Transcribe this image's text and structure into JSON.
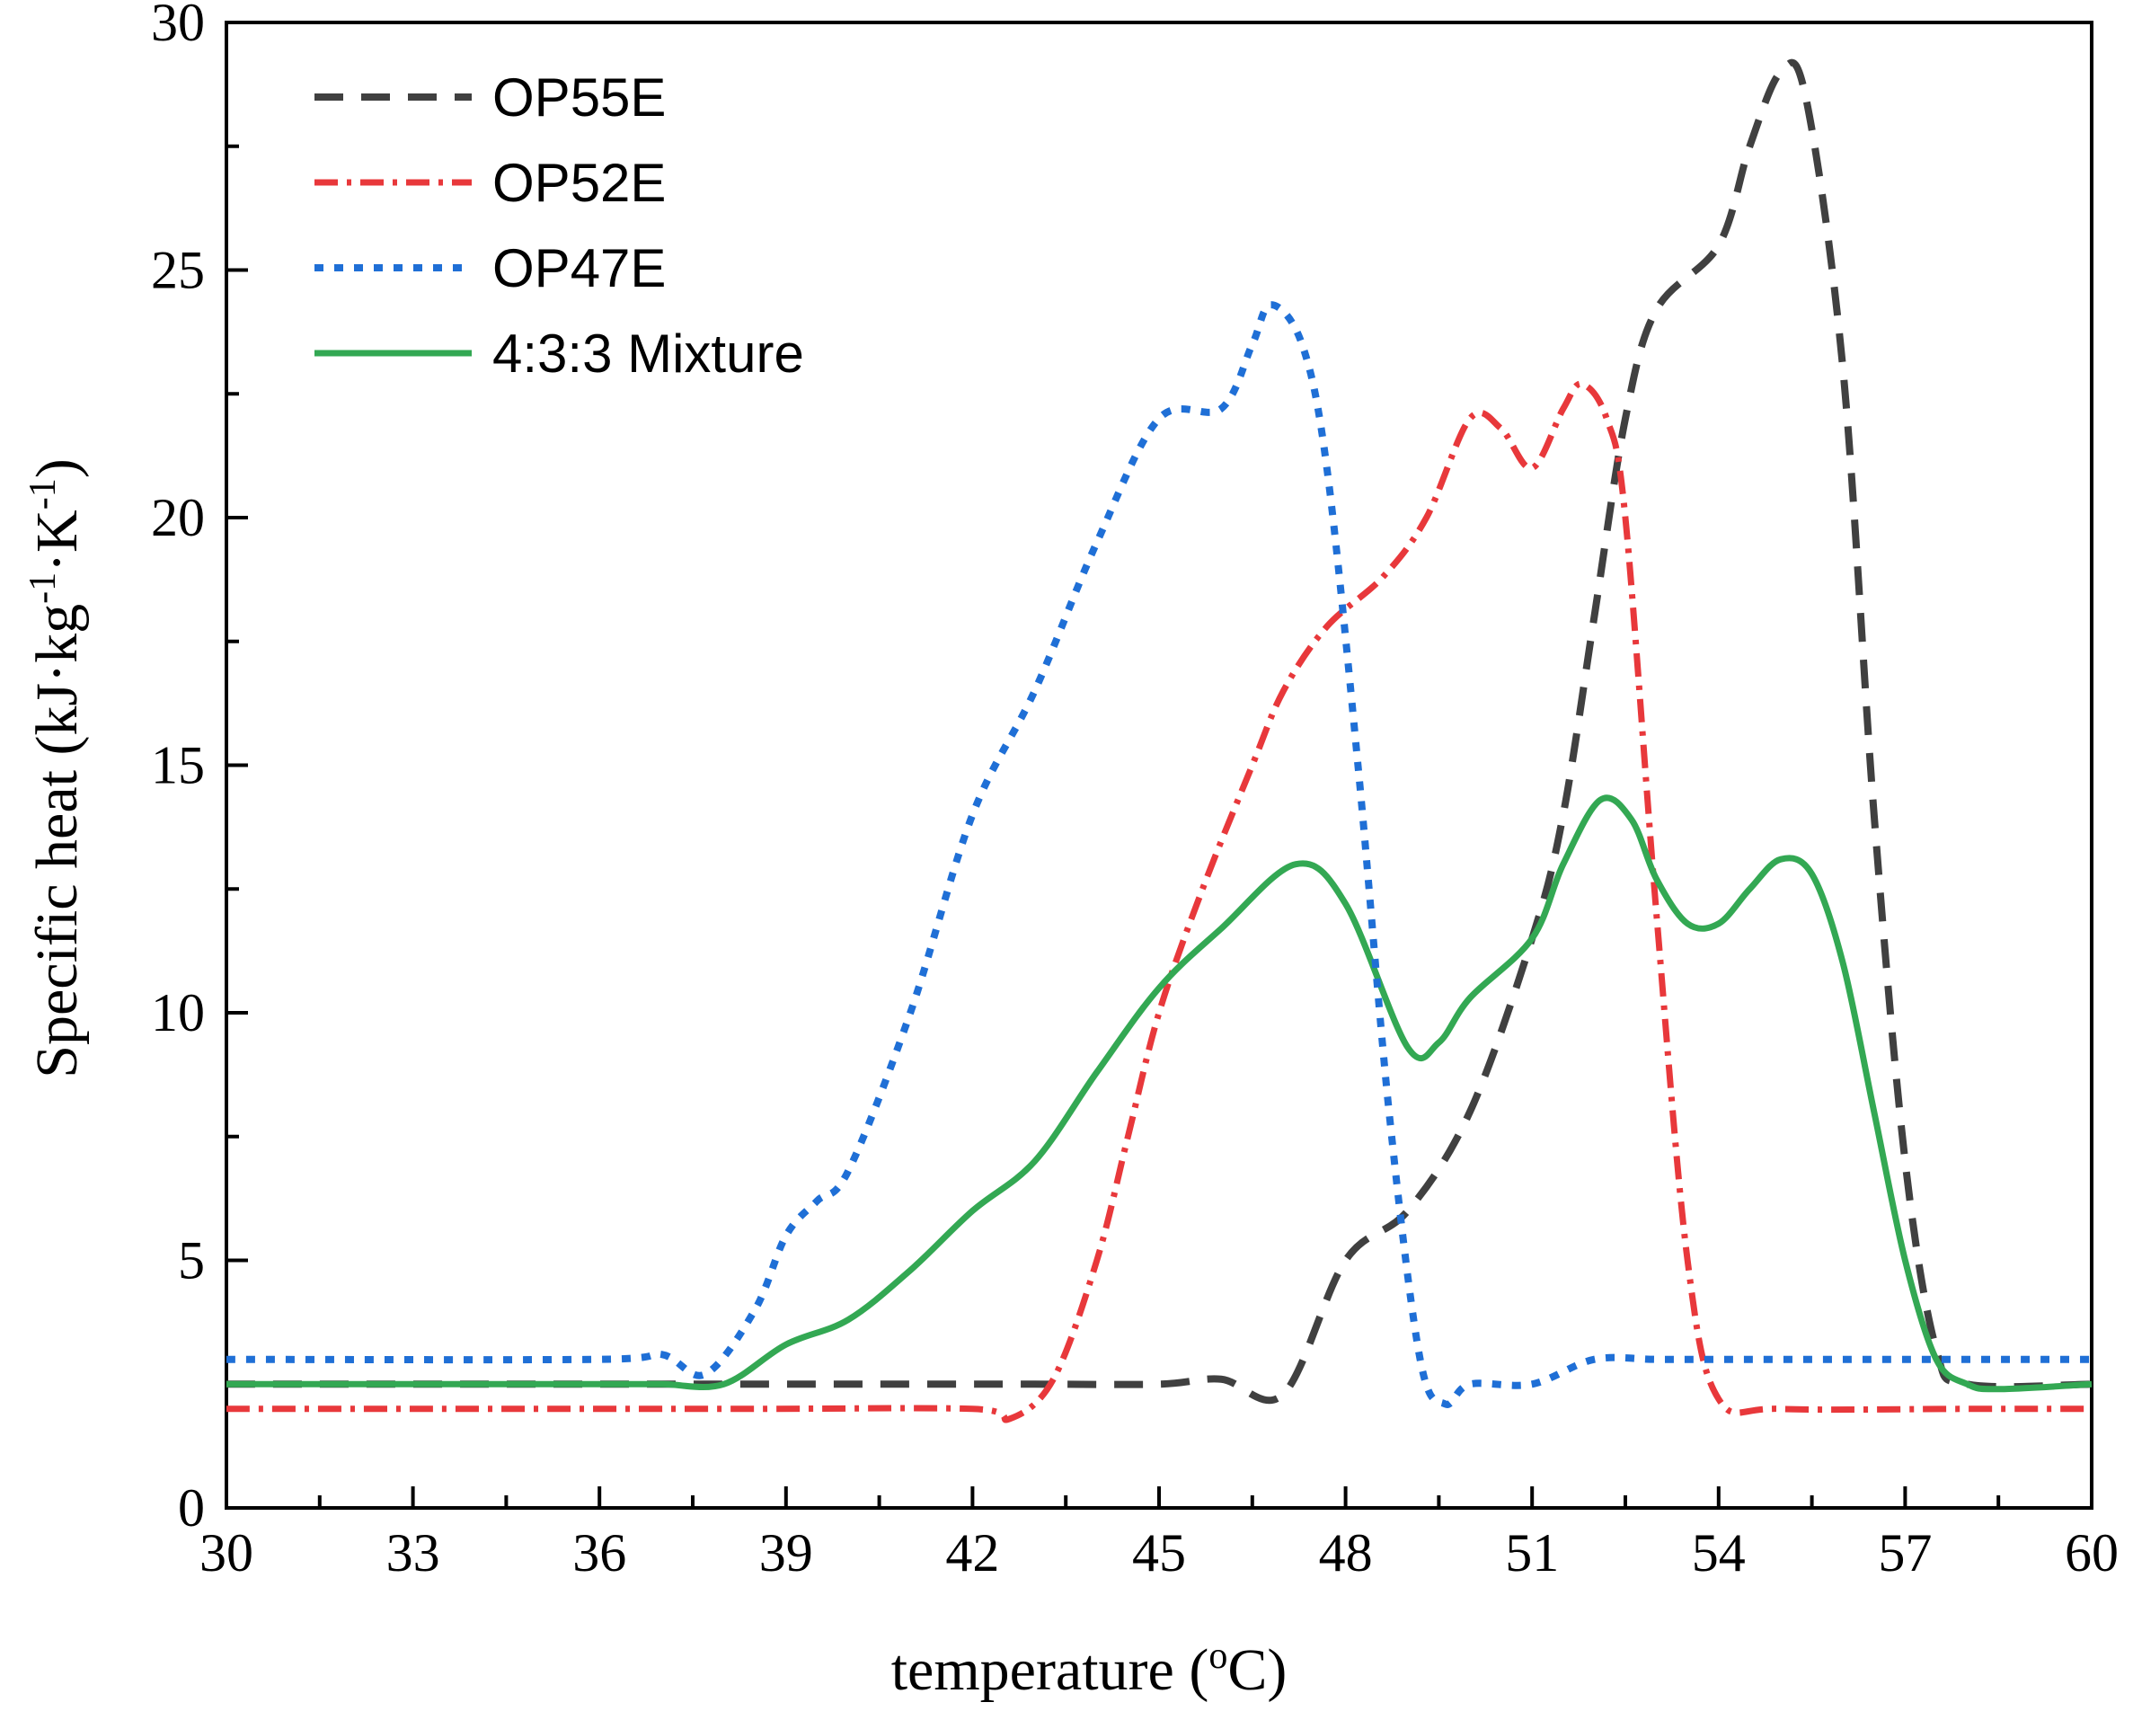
{
  "chart_data": {
    "type": "line",
    "xlabel": "temperature (",
    "xlabel_sup": "o",
    "xlabel_tail": "C)",
    "ylabel": "Specific heat (kJ·kg",
    "ylabel_sup1": "-1",
    "ylabel_mid": "·K",
    "ylabel_sup2": "-1",
    "ylabel_tail": ")",
    "xlim": [
      30,
      60
    ],
    "ylim": [
      0,
      30
    ],
    "x_ticks": [
      30,
      33,
      36,
      39,
      42,
      45,
      48,
      51,
      54,
      57,
      60
    ],
    "y_ticks": [
      0,
      5,
      10,
      15,
      20,
      25,
      30
    ],
    "legend_position": "top-left",
    "grid": false,
    "series": [
      {
        "name": "OP55E",
        "color": "#404040",
        "style": "dash",
        "x": [
          30,
          36,
          37.5,
          40,
          43,
          45,
          46,
          47,
          48,
          49,
          50,
          51,
          51.5,
          52,
          52.5,
          53,
          54,
          54.5,
          55,
          55.4,
          56,
          56.5,
          57,
          57.5,
          58,
          60
        ],
        "y": [
          2.5,
          2.5,
          2.5,
          2.5,
          2.5,
          2.5,
          2.6,
          2.3,
          5.0,
          6.0,
          8.0,
          11.5,
          14.0,
          18.0,
          22.0,
          24.2,
          25.5,
          27.5,
          29.0,
          28.5,
          23.0,
          14.0,
          7.0,
          3.2,
          2.5,
          2.5
        ]
      },
      {
        "name": "OP52E",
        "color": "#e8383b",
        "style": "dashdot",
        "x": [
          30,
          38,
          42,
          42.6,
          43.3,
          44,
          44.5,
          45,
          45.7,
          46.5,
          47,
          47.7,
          48.6,
          49.3,
          50,
          50.5,
          51,
          51.5,
          51.8,
          52.2,
          52.5,
          53,
          53.5,
          54,
          55,
          58,
          60
        ],
        "y": [
          2.0,
          2.0,
          2.0,
          1.8,
          2.6,
          5.0,
          7.5,
          10.0,
          12.5,
          15.0,
          16.5,
          17.8,
          18.8,
          20.0,
          22.0,
          21.8,
          21.0,
          22.2,
          22.7,
          22.0,
          20.0,
          12.0,
          5.0,
          2.2,
          2.0,
          2.0,
          2.0
        ]
      },
      {
        "name": "OP47E",
        "color": "#1f6fd6",
        "style": "dot",
        "x": [
          30,
          36,
          37,
          37.7,
          38.5,
          39,
          39.5,
          40,
          41,
          42,
          43,
          44,
          45,
          46,
          46.5,
          46.8,
          47.3,
          47.7,
          48.2,
          48.7,
          49.2,
          49.6,
          50,
          51,
          52,
          53,
          54,
          56,
          60
        ],
        "y": [
          3.0,
          3.0,
          3.1,
          2.7,
          4.0,
          5.5,
          6.2,
          6.8,
          10.0,
          14.0,
          16.5,
          19.5,
          22.0,
          22.2,
          23.5,
          24.3,
          23.5,
          21.0,
          15.0,
          8.0,
          3.0,
          2.1,
          2.5,
          2.5,
          3.0,
          3.0,
          3.0,
          3.0,
          3.0
        ]
      },
      {
        "name": "4:3:3 Mixture",
        "color": "#33a853",
        "style": "solid",
        "x": [
          30,
          36,
          37,
          38,
          39,
          40,
          41,
          42,
          43,
          44,
          45,
          46,
          47.2,
          48,
          49,
          49.5,
          50,
          51,
          51.5,
          52.1,
          52.6,
          53,
          53.5,
          54,
          54.5,
          55,
          55.5,
          56,
          56.5,
          57,
          57.5,
          58,
          58.5,
          60
        ],
        "y": [
          2.5,
          2.5,
          2.5,
          2.5,
          3.3,
          3.8,
          4.8,
          6.0,
          7.0,
          8.8,
          10.5,
          11.7,
          13.0,
          12.2,
          9.3,
          9.4,
          10.3,
          11.5,
          13.0,
          14.3,
          13.9,
          12.7,
          11.8,
          11.8,
          12.5,
          13.1,
          12.8,
          11.0,
          8.0,
          5.0,
          3.0,
          2.5,
          2.4,
          2.5
        ]
      }
    ]
  }
}
